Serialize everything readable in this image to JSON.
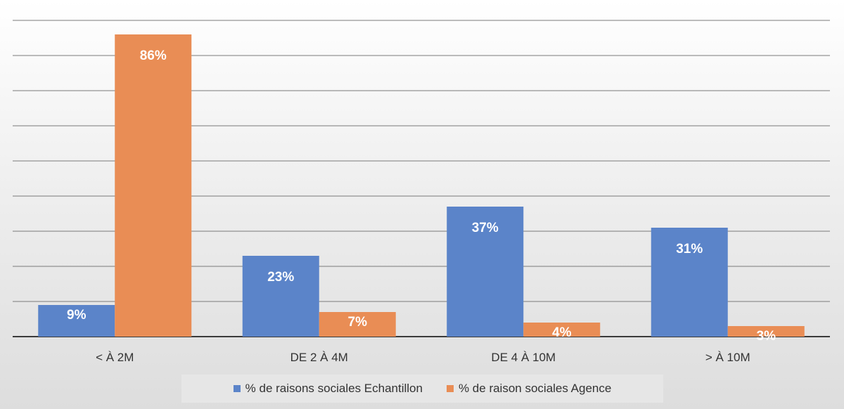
{
  "colors": {
    "series1": "#5b84c9",
    "series2": "#e98d55"
  },
  "legend": {
    "items": [
      {
        "label": "% de raisons sociales Echantillon"
      },
      {
        "label": "% de raison sociales Agence"
      }
    ]
  },
  "chart_data": {
    "type": "bar",
    "categories": [
      "< À 2M",
      "DE 2 À 4M",
      "DE 4 À 10M",
      "> À 10M"
    ],
    "series": [
      {
        "name": "% de raisons sociales Echantillon",
        "values": [
          9,
          23,
          37,
          31
        ],
        "labels": [
          "9%",
          "23%",
          "37%",
          "31%"
        ]
      },
      {
        "name": "% de raison sociales Agence",
        "values": [
          86,
          7,
          4,
          3
        ],
        "labels": [
          "86%",
          "7%",
          "4%",
          "3%"
        ]
      }
    ],
    "title": "",
    "xlabel": "",
    "ylabel": "",
    "ylim": [
      0,
      90
    ],
    "grid": true,
    "legend_position": "bottom"
  }
}
